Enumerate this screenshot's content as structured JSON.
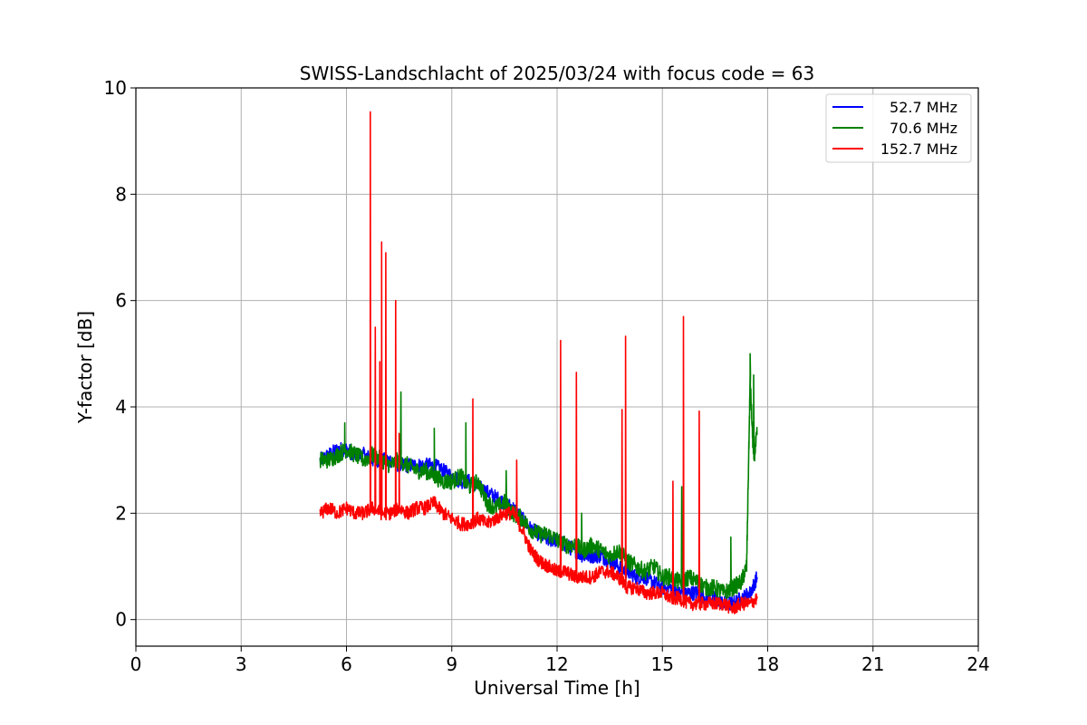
{
  "chart_data": {
    "type": "line",
    "title": "SWISS-Landschlacht of 2025/03/24 with focus code = 63",
    "xlabel": "Universal Time [h]",
    "ylabel": "Y-factor [dB]",
    "xlim": [
      0,
      24
    ],
    "ylim": [
      -0.5,
      10
    ],
    "xticks": [
      0,
      3,
      6,
      9,
      12,
      15,
      18,
      21,
      24
    ],
    "yticks": [
      0,
      2,
      4,
      6,
      8,
      10
    ],
    "grid": true,
    "legend_position": "top-right",
    "series": [
      {
        "name": "52.7 MHz",
        "color": "#0000ff",
        "x": [
          5.25,
          5.5,
          5.75,
          6.0,
          6.25,
          6.5,
          6.75,
          7.0,
          7.25,
          7.5,
          7.75,
          8.0,
          8.25,
          8.5,
          8.75,
          9.0,
          9.25,
          9.5,
          9.75,
          10.0,
          10.25,
          10.5,
          10.75,
          11.0,
          11.25,
          11.5,
          11.75,
          12.0,
          12.25,
          12.5,
          12.75,
          13.0,
          13.25,
          13.5,
          13.75,
          14.0,
          14.25,
          14.5,
          14.75,
          15.0,
          15.25,
          15.5,
          15.75,
          16.0,
          16.25,
          16.5,
          16.75,
          17.0,
          17.25,
          17.5,
          17.7
        ],
        "y": [
          3.0,
          3.1,
          3.2,
          3.2,
          3.1,
          3.1,
          3.0,
          3.0,
          3.0,
          2.9,
          2.9,
          2.9,
          2.9,
          2.9,
          2.8,
          2.7,
          2.6,
          2.6,
          2.5,
          2.4,
          2.3,
          2.2,
          2.1,
          1.9,
          1.7,
          1.6,
          1.5,
          1.5,
          1.4,
          1.3,
          1.2,
          1.2,
          1.2,
          1.1,
          1.0,
          0.9,
          0.8,
          0.8,
          0.7,
          0.6,
          0.6,
          0.5,
          0.5,
          0.5,
          0.4,
          0.4,
          0.3,
          0.3,
          0.4,
          0.5,
          0.8
        ]
      },
      {
        "name": "70.6 MHz",
        "color": "#008000",
        "x": [
          5.25,
          5.5,
          5.75,
          6.0,
          6.25,
          6.5,
          6.75,
          7.0,
          7.25,
          7.5,
          7.75,
          8.0,
          8.25,
          8.5,
          8.75,
          9.0,
          9.25,
          9.5,
          9.75,
          10.0,
          10.25,
          10.5,
          10.75,
          11.0,
          11.25,
          11.5,
          11.75,
          12.0,
          12.25,
          12.5,
          12.75,
          13.0,
          13.25,
          13.5,
          13.75,
          14.0,
          14.25,
          14.5,
          14.75,
          15.0,
          15.25,
          15.5,
          15.75,
          16.0,
          16.25,
          16.5,
          16.75,
          17.0,
          17.25,
          17.4,
          17.5,
          17.6,
          17.7
        ],
        "y": [
          3.0,
          3.0,
          3.1,
          3.2,
          3.1,
          3.0,
          3.1,
          3.0,
          2.9,
          3.0,
          2.9,
          2.8,
          2.8,
          2.7,
          2.6,
          2.6,
          2.7,
          2.5,
          2.6,
          2.2,
          2.1,
          2.2,
          2.0,
          1.9,
          1.7,
          1.6,
          1.6,
          1.5,
          1.4,
          1.4,
          1.3,
          1.4,
          1.3,
          1.2,
          1.3,
          1.1,
          1.0,
          0.9,
          1.0,
          0.8,
          0.8,
          0.7,
          0.8,
          0.7,
          0.6,
          0.6,
          0.5,
          0.6,
          0.7,
          1.0,
          4.5,
          3.0,
          3.5
        ]
      },
      {
        "name": "152.7 MHz",
        "color": "#ff0000",
        "x": [
          5.25,
          5.5,
          5.75,
          6.0,
          6.25,
          6.5,
          6.75,
          7.0,
          7.25,
          7.5,
          7.75,
          8.0,
          8.25,
          8.5,
          8.75,
          9.0,
          9.25,
          9.5,
          9.75,
          10.0,
          10.25,
          10.5,
          10.75,
          11.0,
          11.25,
          11.5,
          11.75,
          12.0,
          12.25,
          12.5,
          12.75,
          13.0,
          13.25,
          13.5,
          13.75,
          14.0,
          14.25,
          14.5,
          14.75,
          15.0,
          15.25,
          15.5,
          15.75,
          16.0,
          16.25,
          16.5,
          16.75,
          17.0,
          17.25,
          17.5,
          17.7
        ],
        "y": [
          2.0,
          2.1,
          2.0,
          2.1,
          2.0,
          2.0,
          2.1,
          2.0,
          2.0,
          2.1,
          2.0,
          2.1,
          2.1,
          2.2,
          2.0,
          1.9,
          1.8,
          1.8,
          1.9,
          1.8,
          1.9,
          2.0,
          2.0,
          1.7,
          1.3,
          1.1,
          1.0,
          0.9,
          0.9,
          0.8,
          0.8,
          0.8,
          0.9,
          0.9,
          0.8,
          0.6,
          0.6,
          0.5,
          0.5,
          0.5,
          0.4,
          0.4,
          0.3,
          0.3,
          0.3,
          0.3,
          0.3,
          0.2,
          0.3,
          0.3,
          0.4
        ]
      }
    ],
    "spikes": [
      {
        "series": 2,
        "x": 6.68,
        "y": 9.55
      },
      {
        "series": 2,
        "x": 6.82,
        "y": 5.5
      },
      {
        "series": 2,
        "x": 6.95,
        "y": 4.85
      },
      {
        "series": 2,
        "x": 7.0,
        "y": 7.1
      },
      {
        "series": 2,
        "x": 7.12,
        "y": 6.9
      },
      {
        "series": 2,
        "x": 7.4,
        "y": 6.0
      },
      {
        "series": 2,
        "x": 7.5,
        "y": 3.5
      },
      {
        "series": 2,
        "x": 9.6,
        "y": 4.15
      },
      {
        "series": 2,
        "x": 10.85,
        "y": 3.0
      },
      {
        "series": 2,
        "x": 12.1,
        "y": 5.25
      },
      {
        "series": 2,
        "x": 12.55,
        "y": 4.65
      },
      {
        "series": 2,
        "x": 13.85,
        "y": 3.95
      },
      {
        "series": 2,
        "x": 13.95,
        "y": 5.33
      },
      {
        "series": 2,
        "x": 15.3,
        "y": 2.6
      },
      {
        "series": 2,
        "x": 15.6,
        "y": 5.7
      },
      {
        "series": 2,
        "x": 16.05,
        "y": 3.92
      },
      {
        "series": 1,
        "x": 5.95,
        "y": 3.7
      },
      {
        "series": 1,
        "x": 7.55,
        "y": 4.28
      },
      {
        "series": 1,
        "x": 8.5,
        "y": 3.6
      },
      {
        "series": 1,
        "x": 9.4,
        "y": 3.7
      },
      {
        "series": 1,
        "x": 10.55,
        "y": 2.8
      },
      {
        "series": 1,
        "x": 12.7,
        "y": 2.0
      },
      {
        "series": 1,
        "x": 15.55,
        "y": 2.5
      },
      {
        "series": 1,
        "x": 16.95,
        "y": 1.55
      },
      {
        "series": 1,
        "x": 17.5,
        "y": 5.0
      },
      {
        "series": 1,
        "x": 17.6,
        "y": 4.6
      },
      {
        "series": 0,
        "x": 17.7,
        "y": 1.15
      }
    ]
  }
}
